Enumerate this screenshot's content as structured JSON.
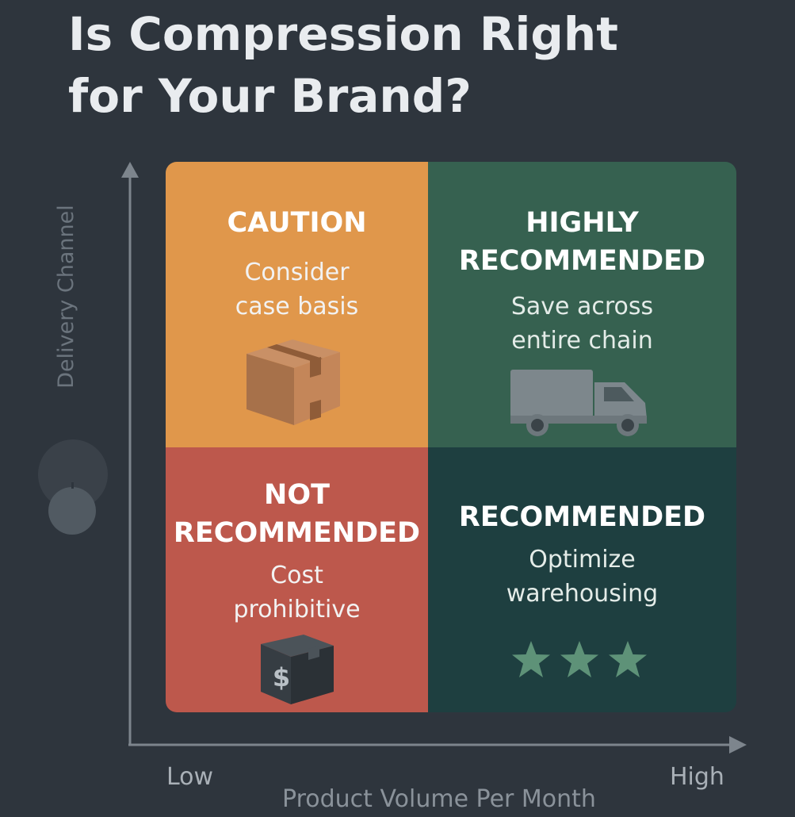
{
  "title": {
    "line1": "Is Compression Right",
    "line2": "for Your Brand?"
  },
  "axes": {
    "y_label": "Delivery Channel",
    "x_label": "Product Volume Per Month",
    "x_low": "Low",
    "x_high": "High"
  },
  "quadrants": {
    "top_left": {
      "heading": "CAUTION",
      "line1": "Consider",
      "line2": "case basis",
      "icon": "box-icon"
    },
    "top_right": {
      "heading_line1": "HIGHLY",
      "heading_line2": "RECOMMENDED",
      "line1": "Save across",
      "line2": "entire chain",
      "icon": "truck-icon"
    },
    "bottom_left": {
      "heading_line1": "NOT",
      "heading_line2": "RECOMMENDED",
      "line1": "Cost",
      "line2": "prohibitive",
      "icon": "dollar-box-icon",
      "icon_text": "$"
    },
    "bottom_right": {
      "heading": "RECOMMENDED",
      "line1": "Optimize",
      "line2": "warehousing",
      "icon": "three-stars-icon",
      "stars": 3
    }
  },
  "colors": {
    "background": "#2e353d",
    "caution": "#e0974b",
    "highly_recommended": "#366150",
    "not_recommended": "#bd584c",
    "recommended": "#1e3f40"
  }
}
